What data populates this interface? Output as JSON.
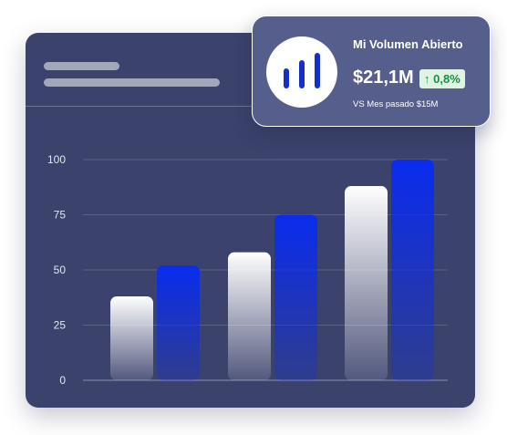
{
  "popup": {
    "title": "Mi Volumen Abierto",
    "value": "$21,1M",
    "change": "0,8%",
    "change_arrow": "↑",
    "comparison": "VS Mes pasado $15M",
    "icon": "bar-chart-icon"
  },
  "colors": {
    "card": "#3b426c",
    "popup": "#565e8c",
    "accent_blue": "#0a2cf0",
    "positive": "#1a8f45"
  },
  "chart_data": {
    "type": "bar",
    "title": "",
    "xlabel": "",
    "ylabel": "",
    "categories": [
      "",
      "",
      ""
    ],
    "series": [
      {
        "color": "#f2f2f5",
        "values": [
          38,
          58,
          88
        ]
      },
      {
        "color": "#0a2cf0",
        "values": [
          52,
          75,
          100
        ]
      }
    ],
    "yticks": [
      0,
      25,
      50,
      75,
      100
    ],
    "ylim": [
      0,
      100
    ],
    "grid": true,
    "legend": "none"
  }
}
